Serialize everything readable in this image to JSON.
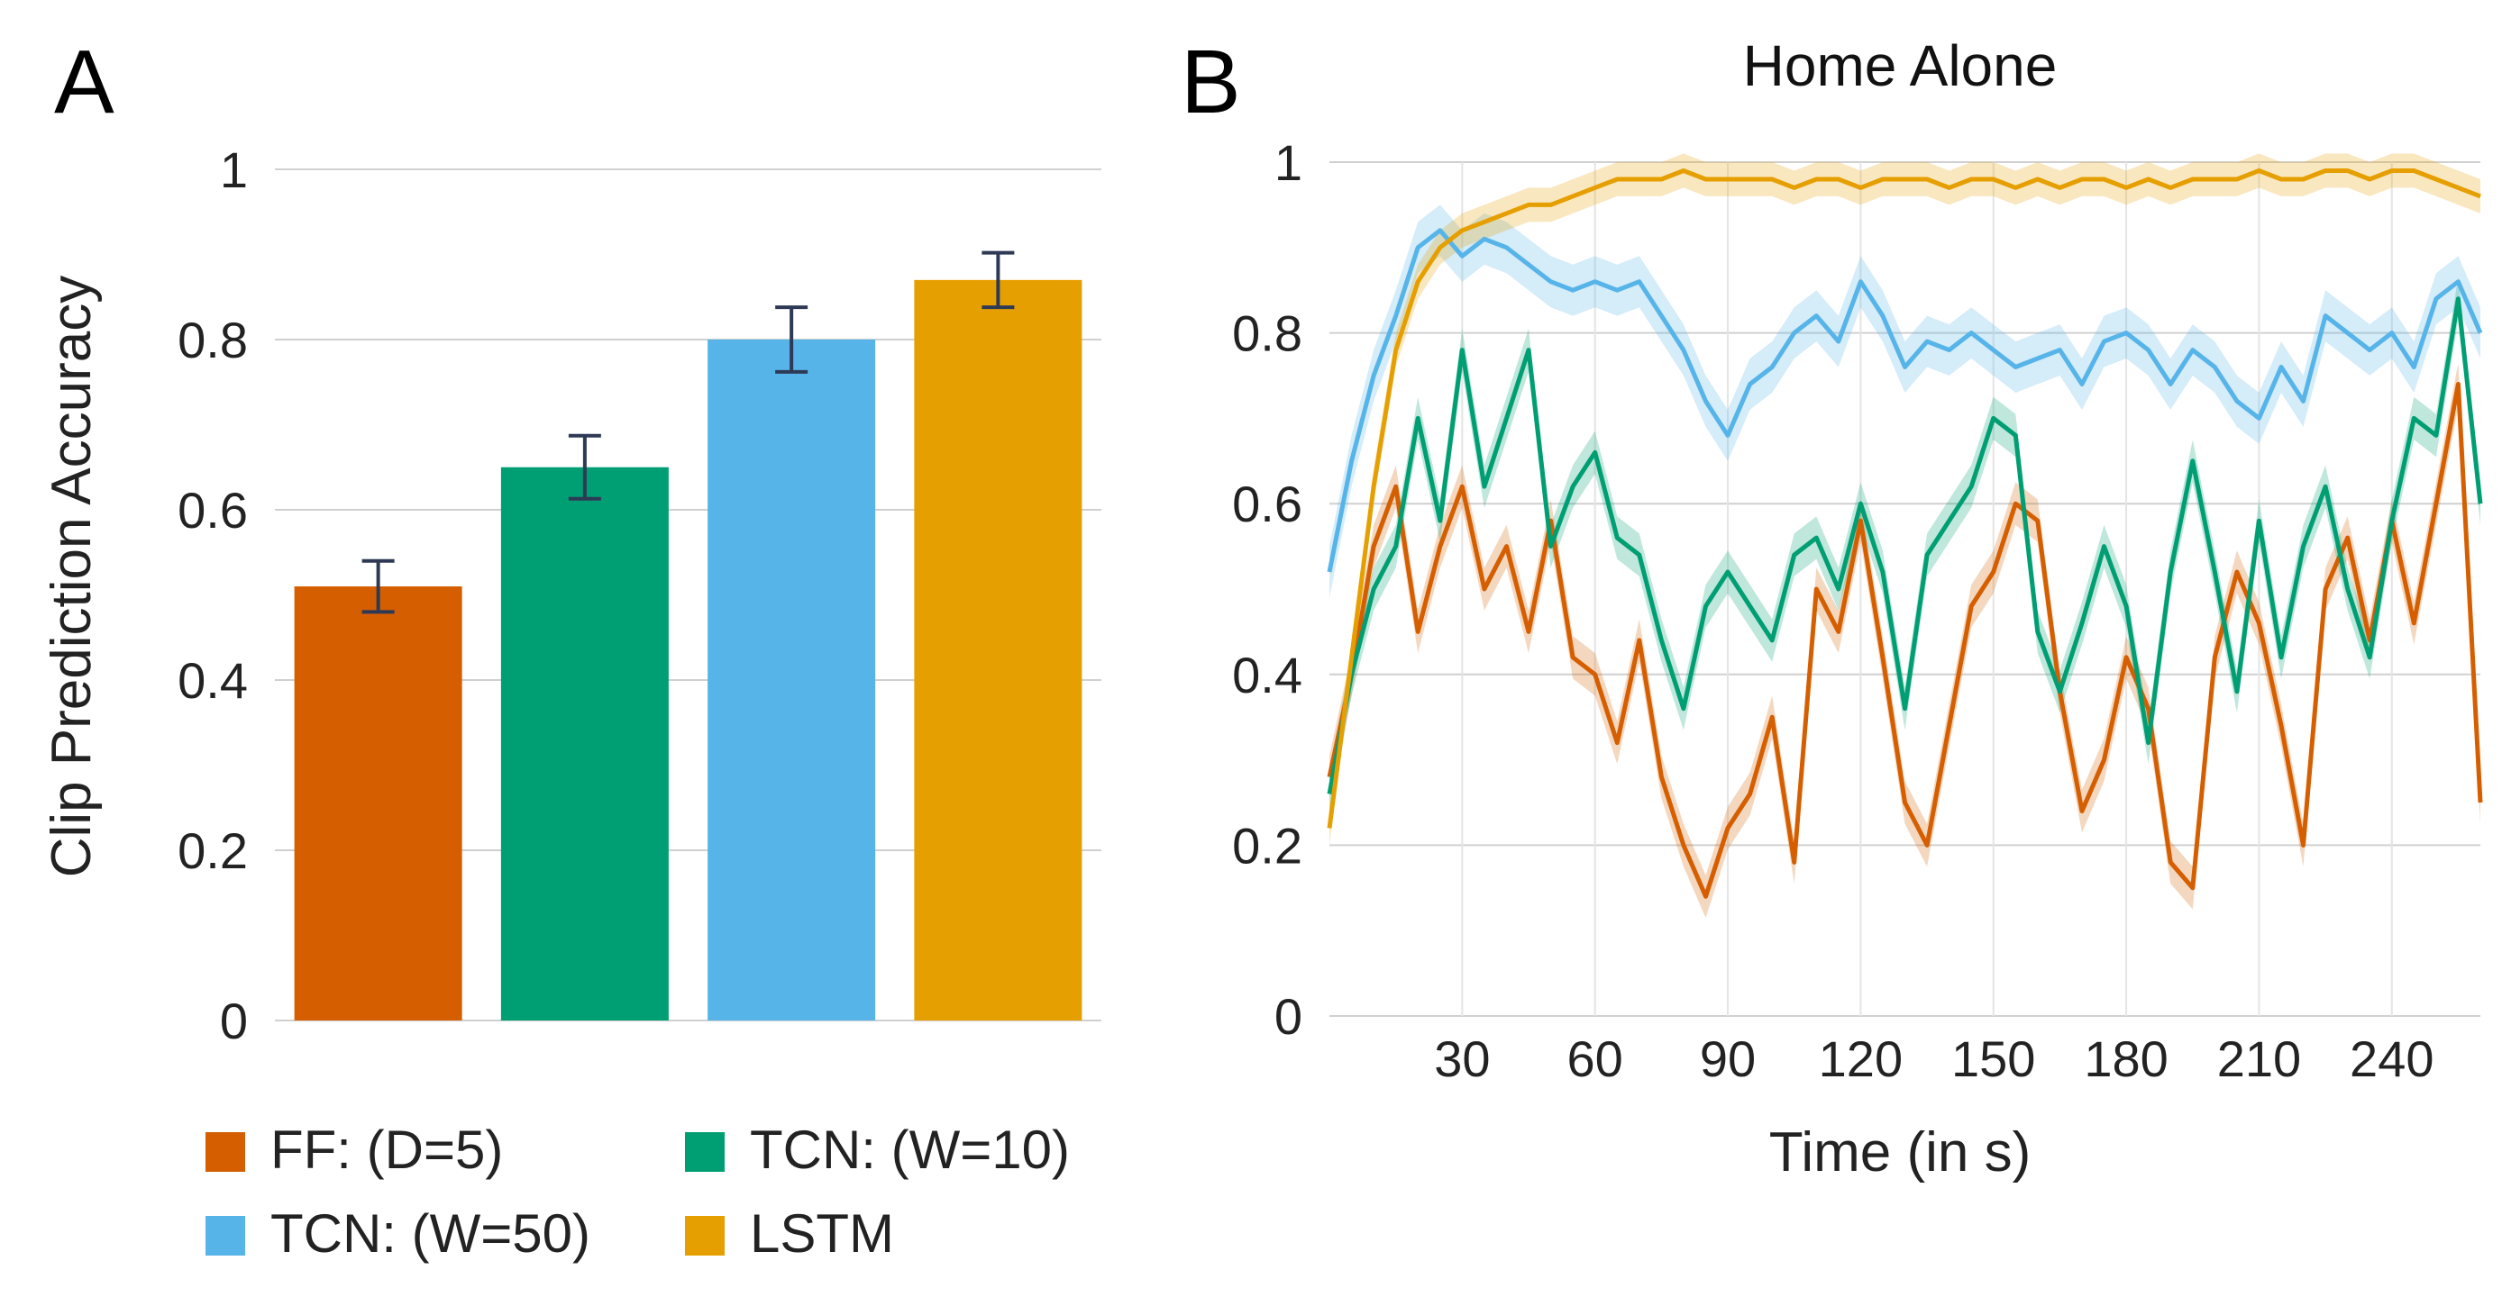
{
  "panel_labels": {
    "a": "A",
    "b": "B"
  },
  "colors": {
    "ff": "#D55E00",
    "tcn10": "#009E73",
    "tcn50": "#56B4E9",
    "lstm": "#E69F00",
    "error_bar": "#2E3A55",
    "grid": "#D0D0D0"
  },
  "chart_data": [
    {
      "type": "bar",
      "panel": "A",
      "title": "",
      "xlabel": "",
      "ylabel": "Clip Prediction Accuracy",
      "ylim": [
        0,
        1
      ],
      "yticks": [
        "0",
        "0.2",
        "0.4",
        "0.6",
        "0.8",
        "1"
      ],
      "grid": true,
      "categories": [
        "FF: (D=5)",
        "TCN: (W=10)",
        "TCN: (W=50)",
        "LSTM"
      ],
      "values": [
        0.51,
        0.65,
        0.8,
        0.87
      ],
      "error": [
        0.03,
        0.037,
        0.038,
        0.032
      ],
      "legend": {
        "position": "bottom",
        "entries": [
          {
            "label": "FF: (D=5)",
            "color": "#D55E00"
          },
          {
            "label": "TCN: (W=10)",
            "color": "#009E73"
          },
          {
            "label": "TCN: (W=50)",
            "color": "#56B4E9"
          },
          {
            "label": "LSTM",
            "color": "#E69F00"
          }
        ]
      }
    },
    {
      "type": "line",
      "panel": "B",
      "title": "Home Alone",
      "xlabel": "Time (in s)",
      "ylabel": "",
      "xlim": [
        0,
        260
      ],
      "ylim": [
        0,
        1
      ],
      "xticks": [
        "30",
        "60",
        "90",
        "120",
        "150",
        "180",
        "210",
        "240"
      ],
      "yticks": [
        "0",
        "0.2",
        "0.4",
        "0.6",
        "0.8",
        "1"
      ],
      "grid": true,
      "x": [
        0,
        5,
        10,
        15,
        20,
        25,
        30,
        35,
        40,
        45,
        50,
        55,
        60,
        65,
        70,
        75,
        80,
        85,
        90,
        95,
        100,
        105,
        110,
        115,
        120,
        125,
        130,
        135,
        140,
        145,
        150,
        155,
        160,
        165,
        170,
        175,
        180,
        185,
        190,
        195,
        200,
        205,
        210,
        215,
        220,
        225,
        230,
        235,
        240,
        245,
        250,
        255,
        260
      ],
      "series": [
        {
          "name": "FF: (D=5)",
          "color": "#D55E00",
          "band": 0.025,
          "values": [
            0.28,
            0.4,
            0.55,
            0.62,
            0.45,
            0.55,
            0.62,
            0.5,
            0.55,
            0.45,
            0.58,
            0.42,
            0.4,
            0.32,
            0.44,
            0.28,
            0.2,
            0.14,
            0.22,
            0.26,
            0.35,
            0.18,
            0.5,
            0.45,
            0.58,
            0.42,
            0.25,
            0.2,
            0.34,
            0.48,
            0.52,
            0.6,
            0.58,
            0.38,
            0.24,
            0.3,
            0.42,
            0.36,
            0.18,
            0.15,
            0.42,
            0.52,
            0.46,
            0.34,
            0.2,
            0.5,
            0.56,
            0.44,
            0.58,
            0.46,
            0.6,
            0.74,
            0.25
          ]
        },
        {
          "name": "TCN: (W=10)",
          "color": "#009E73",
          "band": 0.025,
          "values": [
            0.26,
            0.4,
            0.5,
            0.55,
            0.7,
            0.58,
            0.78,
            0.62,
            0.7,
            0.78,
            0.55,
            0.62,
            0.66,
            0.56,
            0.54,
            0.44,
            0.36,
            0.48,
            0.52,
            0.48,
            0.44,
            0.54,
            0.56,
            0.5,
            0.6,
            0.52,
            0.36,
            0.54,
            0.58,
            0.62,
            0.7,
            0.68,
            0.45,
            0.38,
            0.46,
            0.55,
            0.48,
            0.32,
            0.52,
            0.65,
            0.52,
            0.38,
            0.58,
            0.42,
            0.55,
            0.62,
            0.5,
            0.42,
            0.58,
            0.7,
            0.68,
            0.84,
            0.6
          ]
        },
        {
          "name": "TCN: (W=50)",
          "color": "#56B4E9",
          "band": 0.03,
          "values": [
            0.52,
            0.65,
            0.75,
            0.82,
            0.9,
            0.92,
            0.89,
            0.91,
            0.9,
            0.88,
            0.86,
            0.85,
            0.86,
            0.85,
            0.86,
            0.82,
            0.78,
            0.72,
            0.68,
            0.74,
            0.76,
            0.8,
            0.82,
            0.79,
            0.86,
            0.82,
            0.76,
            0.79,
            0.78,
            0.8,
            0.78,
            0.76,
            0.77,
            0.78,
            0.74,
            0.79,
            0.8,
            0.78,
            0.74,
            0.78,
            0.76,
            0.72,
            0.7,
            0.76,
            0.72,
            0.82,
            0.8,
            0.78,
            0.8,
            0.76,
            0.84,
            0.86,
            0.8
          ]
        },
        {
          "name": "LSTM",
          "color": "#E69F00",
          "band": 0.02,
          "values": [
            0.22,
            0.42,
            0.62,
            0.78,
            0.86,
            0.9,
            0.92,
            0.93,
            0.94,
            0.95,
            0.95,
            0.96,
            0.97,
            0.98,
            0.98,
            0.98,
            0.99,
            0.98,
            0.98,
            0.98,
            0.98,
            0.97,
            0.98,
            0.98,
            0.97,
            0.98,
            0.98,
            0.98,
            0.97,
            0.98,
            0.98,
            0.97,
            0.98,
            0.97,
            0.98,
            0.98,
            0.97,
            0.98,
            0.97,
            0.98,
            0.98,
            0.98,
            0.99,
            0.98,
            0.98,
            0.99,
            0.99,
            0.98,
            0.99,
            0.99,
            0.98,
            0.97,
            0.96
          ]
        }
      ]
    }
  ]
}
